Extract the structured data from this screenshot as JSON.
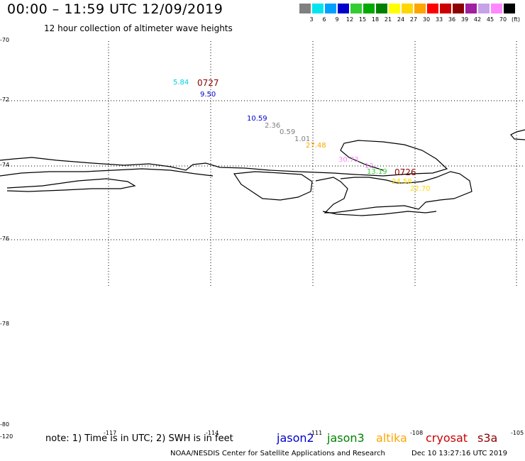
{
  "header": {
    "title": "00:00 – 11:59 UTC 12/09/2019",
    "subtitle": "12 hour collection of altimeter wave heights"
  },
  "scale": {
    "colors": [
      "#808080",
      "#00e5ee",
      "#00a0ff",
      "#0000cd",
      "#33cc33",
      "#00aa00",
      "#008000",
      "#ffff00",
      "#ffd700",
      "#ffa500",
      "#ff0000",
      "#cc0000",
      "#8b0000",
      "#a020a0",
      "#c8a2e8",
      "#ff88ff",
      "#000000"
    ],
    "labels": [
      "3",
      "6",
      "9",
      "12",
      "15",
      "18",
      "21",
      "24",
      "27",
      "30",
      "33",
      "36",
      "39",
      "42",
      "45",
      "70",
      "(ft)"
    ]
  },
  "axes": {
    "lat_labels": [
      "-70",
      "-72",
      "-74",
      "-76",
      "-78",
      "-80"
    ],
    "corner_label": "-120",
    "lon_labels": [
      "-117",
      "-114",
      "-111",
      "-108",
      "-105"
    ]
  },
  "pass_labels": [
    "0727",
    "0726"
  ],
  "values": [
    {
      "text": "5.84",
      "color": "#00d0e0"
    },
    {
      "text": "9.50",
      "color": "#0000cd"
    },
    {
      "text": "10.59",
      "color": "#0000cd"
    },
    {
      "text": "2.36",
      "color": "#808080"
    },
    {
      "text": "0.59",
      "color": "#808080"
    },
    {
      "text": "1.01",
      "color": "#808080"
    },
    {
      "text": "27.48",
      "color": "#ffa500"
    },
    {
      "text": "30.73",
      "color": "#ff88ff"
    },
    {
      "text": "12",
      "color": "#ff88ff"
    },
    {
      "text": "13.19",
      "color": "#33cc33"
    },
    {
      "text": "24.58",
      "color": "#ffd700"
    },
    {
      "text": "22.70",
      "color": "#ffd700"
    }
  ],
  "footer": {
    "note": "note: 1) Time is in UTC; 2) SWH is in feet",
    "satellites": [
      {
        "name": "jason2",
        "color": "#0000cd"
      },
      {
        "name": "jason3",
        "color": "#008000"
      },
      {
        "name": "altika",
        "color": "#ffa500"
      },
      {
        "name": "cryosat",
        "color": "#cc0000"
      },
      {
        "name": "s3a",
        "color": "#8b0000"
      }
    ],
    "credit": "NOAA/NESDIS Center for Satellite Applications and Research",
    "timestamp": "Dec 10 13:27:16 UTC 2019"
  }
}
